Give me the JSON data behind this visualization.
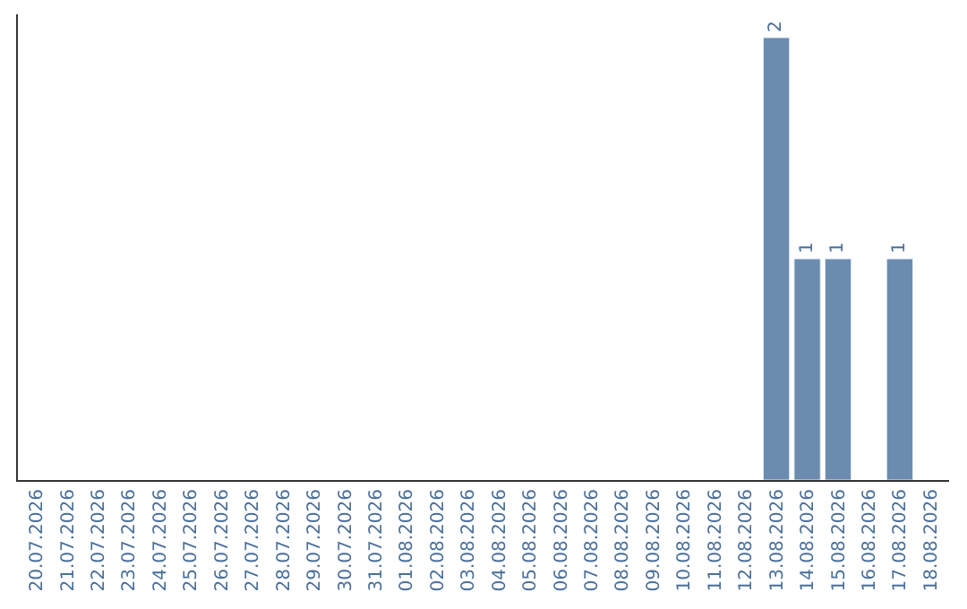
{
  "chart_data": {
    "type": "bar",
    "categories": [
      "20.07.2026",
      "21.07.2026",
      "22.07.2026",
      "23.07.2026",
      "24.07.2026",
      "25.07.2026",
      "26.07.2026",
      "27.07.2026",
      "28.07.2026",
      "29.07.2026",
      "30.07.2026",
      "31.07.2026",
      "01.08.2026",
      "02.08.2026",
      "03.08.2026",
      "04.08.2026",
      "05.08.2026",
      "06.08.2026",
      "07.08.2026",
      "08.08.2026",
      "09.08.2026",
      "10.08.2026",
      "11.08.2026",
      "12.08.2026",
      "13.08.2026",
      "14.08.2026",
      "15.08.2026",
      "16.08.2026",
      "17.08.2026",
      "18.08.2026"
    ],
    "values": [
      null,
      null,
      null,
      null,
      null,
      null,
      null,
      null,
      null,
      null,
      null,
      null,
      null,
      null,
      null,
      null,
      null,
      null,
      null,
      null,
      null,
      null,
      null,
      null,
      2,
      1,
      1,
      null,
      1,
      null
    ],
    "data_labels": true,
    "color": "#6b8cae",
    "tick_labels": "x"
  }
}
